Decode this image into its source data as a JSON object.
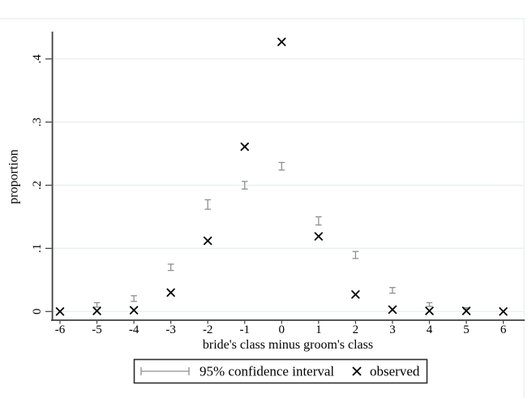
{
  "chart_data": {
    "type": "scatter",
    "title": "",
    "xlabel": "bride's class minus groom's class",
    "ylabel": "proportion",
    "x": [
      -6,
      -5,
      -4,
      -3,
      -2,
      -1,
      0,
      1,
      2,
      3,
      4,
      5,
      6
    ],
    "x_tick_labels": [
      "-6",
      "-5",
      "-4",
      "-3",
      "-2",
      "-1",
      "0",
      "1",
      "2",
      "3",
      "4",
      "5",
      "6"
    ],
    "y_ticks": [
      0,
      0.1,
      0.2,
      0.3,
      0.4
    ],
    "y_tick_labels": [
      "0",
      ".1",
      ".2",
      ".3",
      ".4"
    ],
    "ylim": [
      -0.014,
      0.464
    ],
    "grid": true,
    "legend_position": "bottom",
    "series": [
      {
        "name": "95% confidence interval",
        "type": "errorbar",
        "points": [
          {
            "x": -5,
            "low": 0.007,
            "high": 0.014
          },
          {
            "x": -4,
            "low": 0.016,
            "high": 0.025
          },
          {
            "x": -3,
            "low": 0.065,
            "high": 0.075
          },
          {
            "x": -2,
            "low": 0.162,
            "high": 0.177
          },
          {
            "x": -1,
            "low": 0.194,
            "high": 0.206
          },
          {
            "x": 0,
            "low": 0.224,
            "high": 0.236
          },
          {
            "x": 1,
            "low": 0.137,
            "high": 0.15
          },
          {
            "x": 2,
            "low": 0.084,
            "high": 0.095
          },
          {
            "x": 3,
            "low": 0.029,
            "high": 0.038
          },
          {
            "x": 4,
            "low": 0.008,
            "high": 0.014
          },
          {
            "x": 5,
            "low": 0.004,
            "high": 0.006
          }
        ]
      },
      {
        "name": "observed",
        "type": "scatter_x_marker",
        "points": [
          {
            "x": -6,
            "y": 0.0
          },
          {
            "x": -5,
            "y": 0.001
          },
          {
            "x": -4,
            "y": 0.002
          },
          {
            "x": -3,
            "y": 0.03
          },
          {
            "x": -2,
            "y": 0.112
          },
          {
            "x": -1,
            "y": 0.261
          },
          {
            "x": 0,
            "y": 0.427
          },
          {
            "x": 1,
            "y": 0.119
          },
          {
            "x": 2,
            "y": 0.027
          },
          {
            "x": 3,
            "y": 0.003
          },
          {
            "x": 4,
            "y": 0.001
          },
          {
            "x": 5,
            "y": 0.001
          },
          {
            "x": 6,
            "y": 0.0
          }
        ]
      }
    ]
  },
  "legend": {
    "ci_label": "95% confidence interval",
    "observed_label": "observed"
  },
  "colors": {
    "background": "#ffffff",
    "grid": "#e4efeb",
    "frame": "#eaf2ef",
    "axis": "#3f3f3f",
    "ci": "#8f8f8f",
    "marker": "#000000",
    "text": "#000000"
  }
}
